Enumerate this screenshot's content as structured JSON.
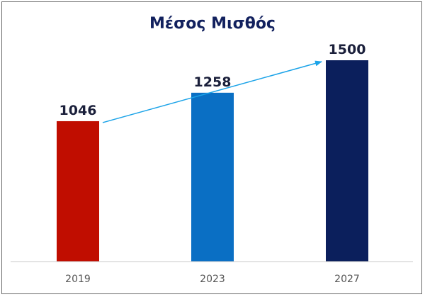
{
  "chart_data": {
    "type": "bar",
    "title": "Μέσος Μισθός",
    "categories": [
      "2019",
      "2023",
      "2027"
    ],
    "values": [
      1046,
      1258,
      1500
    ],
    "colors": [
      "#c00d00",
      "#0a6fc4",
      "#0b1f5c"
    ],
    "trend_arrow": {
      "from": "2019",
      "to": "2027",
      "color": "#1ba3e8"
    },
    "ylim": [
      0,
      1500
    ],
    "grid": false,
    "legend": "none"
  }
}
